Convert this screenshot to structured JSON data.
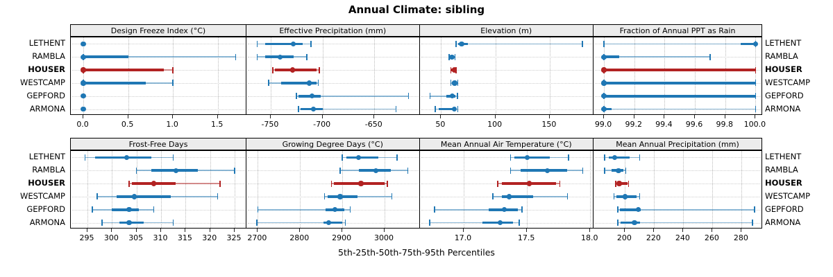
{
  "title": "Annual Climate: sibling",
  "xlabel": "5th-25th-50th-75th-95th Percentiles",
  "colors": {
    "series_blue": "#1f77b4",
    "series_blue_light": "rgba(31,119,180,0.5)",
    "highlight_red": "#b22222",
    "highlight_red_light": "rgba(178,34,34,0.5)",
    "strip_bg": "#ececec",
    "grid": "#c4c4c4",
    "border": "#000000"
  },
  "sites": [
    "LETHENT",
    "RAMBLA",
    "HOUSER",
    "WESTCAMP",
    "GEPFORD",
    "ARMONA"
  ],
  "highlight_site": "HOUSER",
  "chart_data": {
    "type": "dotplot-percentiles",
    "percentile_order": [
      "p5",
      "p25",
      "p50",
      "p75",
      "p95"
    ],
    "rows": [
      "LETHENT",
      "RAMBLA",
      "HOUSER",
      "WESTCAMP",
      "GEPFORD",
      "ARMONA"
    ],
    "panels": [
      {
        "label": "Design Freeze Index (°C)",
        "grid_row": 0,
        "grid_col": 0,
        "xlim": [
          -0.14,
          1.82
        ],
        "ticks": [
          {
            "v": 0.0,
            "t": "0.0"
          },
          {
            "v": 0.5,
            "t": "0.5"
          },
          {
            "v": 1.0,
            "t": "1.0"
          },
          {
            "v": 1.5,
            "t": "1.5"
          }
        ],
        "values": {
          "LETHENT": [
            0,
            0,
            0,
            0,
            0
          ],
          "RAMBLA": [
            0,
            0,
            0,
            0.5,
            1.7
          ],
          "HOUSER": [
            0,
            0,
            0,
            0.9,
            1.0
          ],
          "WESTCAMP": [
            0,
            0,
            0,
            0.7,
            1.0
          ],
          "GEPFORD": [
            0,
            0,
            0,
            0,
            0
          ],
          "ARMONA": [
            0,
            0,
            0,
            0,
            0
          ]
        }
      },
      {
        "label": "Effective Precipitation (mm)",
        "grid_row": 0,
        "grid_col": 1,
        "xlim": [
          -773.4,
          -606.3
        ],
        "ticks": [
          {
            "v": -750,
            "t": "-750"
          },
          {
            "v": -700,
            "t": "-700"
          },
          {
            "v": -650,
            "t": "-650"
          }
        ],
        "values": {
          "LETHENT": [
            -763,
            -755,
            -728,
            -719,
            -711
          ],
          "RAMBLA": [
            -763,
            -755,
            -741,
            -728,
            -715
          ],
          "HOUSER": [
            -748,
            -746,
            -729,
            -706,
            -703
          ],
          "WESTCAMP": [
            -752,
            -740,
            -713,
            -706,
            -704
          ],
          "GEPFORD": [
            -725,
            -723,
            -710,
            -702,
            -617
          ],
          "ARMONA": [
            -723,
            -721,
            -709,
            -700,
            -629
          ]
        }
      },
      {
        "label": "Elevation (m)",
        "grid_row": 0,
        "grid_col": 2,
        "xlim": [
          30.3,
          190.3
        ],
        "ticks": [
          {
            "v": 50,
            "t": "50"
          },
          {
            "v": 100,
            "t": "100"
          },
          {
            "v": 150,
            "t": "150"
          }
        ],
        "values": {
          "LETHENT": [
            64,
            66,
            69,
            75,
            180
          ],
          "RAMBLA": [
            57.5,
            58.5,
            60,
            61.5,
            63
          ],
          "HOUSER": [
            59,
            59.5,
            62,
            63,
            64
          ],
          "WESTCAMP": [
            59,
            60,
            62.5,
            64,
            65.5
          ],
          "GEPFORD": [
            40,
            55,
            60.5,
            63,
            65
          ],
          "ARMONA": [
            44.5,
            48,
            62,
            64,
            65.5
          ]
        }
      },
      {
        "label": "Fraction of Annual PPT as Rain",
        "grid_row": 0,
        "grid_col": 3,
        "xlim": [
          98.931,
          100.044
        ],
        "ticks": [
          {
            "v": 99.0,
            "t": "99.0"
          },
          {
            "v": 99.2,
            "t": "99.2"
          },
          {
            "v": 99.4,
            "t": "99.4"
          },
          {
            "v": 99.6,
            "t": "99.6"
          },
          {
            "v": 99.8,
            "t": "99.8"
          },
          {
            "v": 100.0,
            "t": "100.0"
          }
        ],
        "values": {
          "LETHENT": [
            99.0,
            99.9,
            100.0,
            100.0,
            100.0
          ],
          "RAMBLA": [
            99.0,
            99.0,
            99.0,
            99.1,
            99.7
          ],
          "HOUSER": [
            99.0,
            99.0,
            99.0,
            100.0,
            100.0
          ],
          "WESTCAMP": [
            99.0,
            99.0,
            99.0,
            100.0,
            100.0
          ],
          "GEPFORD": [
            99.0,
            99.0,
            99.0,
            100.0,
            100.0
          ],
          "ARMONA": [
            99.0,
            99.0,
            99.0,
            99.05,
            100.0
          ]
        }
      },
      {
        "label": "Frost-Free Days",
        "grid_row": 1,
        "grid_col": 0,
        "xlim": [
          291.6,
          327.4
        ],
        "ticks": [
          {
            "v": 295,
            "t": "295"
          },
          {
            "v": 300,
            "t": "300"
          },
          {
            "v": 305,
            "t": "305"
          },
          {
            "v": 310,
            "t": "310"
          },
          {
            "v": 315,
            "t": "315"
          },
          {
            "v": 320,
            "t": "320"
          },
          {
            "v": 325,
            "t": "325"
          }
        ],
        "values": {
          "LETHENT": [
            294.5,
            296.5,
            303,
            308,
            312.5
          ],
          "RAMBLA": [
            305,
            308,
            313,
            317.5,
            325
          ],
          "HOUSER": [
            303.5,
            304,
            308.5,
            313,
            322
          ],
          "WESTCAMP": [
            297,
            301,
            304.5,
            312,
            321.5
          ],
          "GEPFORD": [
            296,
            300,
            303.5,
            305.5,
            308.5
          ],
          "ARMONA": [
            298,
            301.5,
            303.5,
            306.5,
            312.5
          ]
        }
      },
      {
        "label": "Growing Degree Days (°C)",
        "grid_row": 1,
        "grid_col": 1,
        "xlim": [
          2673,
          3083
        ],
        "ticks": [
          {
            "v": 2700,
            "t": "2700"
          },
          {
            "v": 2800,
            "t": "2800"
          },
          {
            "v": 2900,
            "t": "2900"
          },
          {
            "v": 3000,
            "t": "3000"
          }
        ],
        "values": {
          "LETHENT": [
            2900,
            2910,
            2938,
            2985,
            3030
          ],
          "RAMBLA": [
            2895,
            2940,
            2980,
            3015,
            3055
          ],
          "HOUSER": [
            2874,
            2880,
            2944,
            3000,
            3007
          ],
          "WESTCAMP": [
            2858,
            2865,
            2895,
            2936,
            3017
          ],
          "GEPFORD": [
            2700,
            2860,
            2882,
            2905,
            2919
          ],
          "ARMONA": [
            2698,
            2855,
            2868,
            2900,
            2907
          ]
        }
      },
      {
        "label": "Mean Annual Air Temperature (°C)",
        "grid_row": 1,
        "grid_col": 2,
        "xlim": [
          16.652,
          18.026
        ],
        "ticks": [
          {
            "v": 17.0,
            "t": "17.0"
          },
          {
            "v": 17.5,
            "t": "17.5"
          },
          {
            "v": 18.0,
            "t": "18.0"
          }
        ],
        "values": {
          "LETHENT": [
            17.37,
            17.4,
            17.5,
            17.68,
            17.83
          ],
          "RAMBLA": [
            17.37,
            17.45,
            17.66,
            17.82,
            17.94
          ],
          "HOUSER": [
            17.27,
            17.3,
            17.52,
            17.73,
            17.76
          ],
          "WESTCAMP": [
            17.23,
            17.3,
            17.36,
            17.55,
            17.82
          ],
          "GEPFORD": [
            16.77,
            17.2,
            17.32,
            17.43,
            17.46
          ],
          "ARMONA": [
            16.73,
            17.15,
            17.29,
            17.39,
            17.44
          ]
        }
      },
      {
        "label": "Mean Annual Precipitation (mm)",
        "grid_row": 1,
        "grid_col": 3,
        "xlim": [
          178.4,
          294.1
        ],
        "ticks": [
          {
            "v": 200,
            "t": "200"
          },
          {
            "v": 220,
            "t": "220"
          },
          {
            "v": 240,
            "t": "240"
          },
          {
            "v": 260,
            "t": "260"
          },
          {
            "v": 280,
            "t": "280"
          }
        ],
        "values": {
          "LETHENT": [
            186,
            189,
            193,
            203,
            210
          ],
          "RAMBLA": [
            186,
            191,
            195.5,
            199,
            200.5
          ],
          "HOUSER": [
            193.5,
            194.5,
            196,
            201.5,
            202.5
          ],
          "WESTCAMP": [
            192.5,
            194,
            200,
            208,
            210
          ],
          "GEPFORD": [
            195,
            196.5,
            209,
            211,
            289
          ],
          "ARMONA": [
            195,
            197,
            206.5,
            210.5,
            287.5
          ]
        }
      }
    ]
  }
}
